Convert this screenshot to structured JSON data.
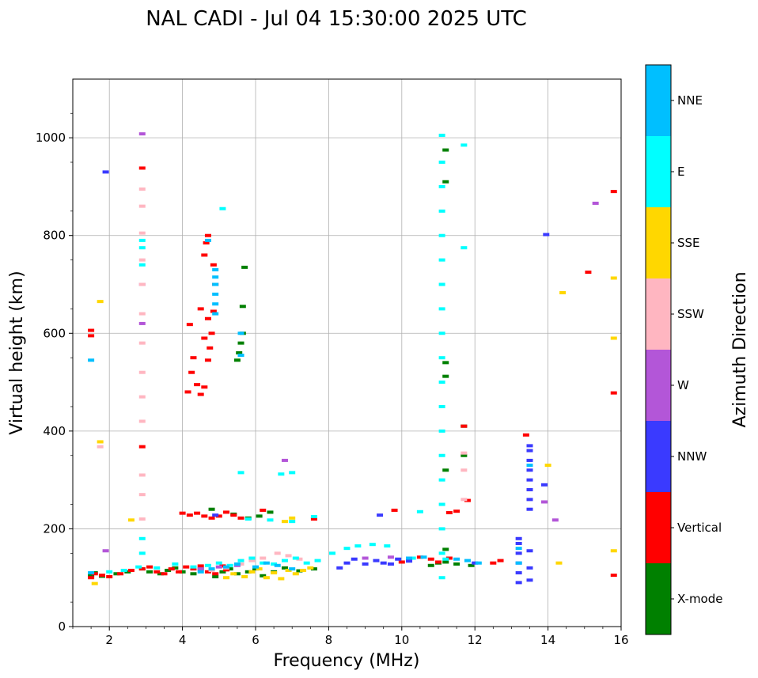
{
  "chart_data": {
    "type": "scatter",
    "title": "NAL CADI - Jul 04 15:30:00 2025 UTC",
    "xlabel": "Frequency (MHz)",
    "ylabel": "Virtual height (km)",
    "xlim": [
      1,
      16
    ],
    "ylim": [
      0,
      1120
    ],
    "xticks": [
      2,
      4,
      6,
      8,
      10,
      12,
      14,
      16
    ],
    "yticks": [
      0,
      200,
      400,
      600,
      800,
      1000
    ],
    "grid": true,
    "colorbar": {
      "label": "Azimuth Direction",
      "categories": [
        "X-mode",
        "Vertical",
        "NNW",
        "W",
        "SSW",
        "SSE",
        "E",
        "NNE"
      ],
      "colors": [
        "#008000",
        "#ff0000",
        "#3a3aff",
        "#b356d8",
        "#ffb6c1",
        "#ffd700",
        "#00ffff",
        "#00bfff"
      ]
    },
    "series": [
      {
        "name": "X-mode",
        "points": [
          [
            1.5,
            105
          ],
          [
            1.6,
            110
          ],
          [
            1.8,
            103
          ],
          [
            2.2,
            108
          ],
          [
            2.5,
            112
          ],
          [
            2.9,
            118
          ],
          [
            3.1,
            112
          ],
          [
            3.4,
            108
          ],
          [
            3.6,
            115
          ],
          [
            3.8,
            120
          ],
          [
            4.0,
            112
          ],
          [
            4.3,
            108
          ],
          [
            4.5,
            118
          ],
          [
            4.9,
            102
          ],
          [
            5.1,
            112
          ],
          [
            5.3,
            118
          ],
          [
            5.5,
            108
          ],
          [
            5.8,
            112
          ],
          [
            6.0,
            118
          ],
          [
            6.2,
            104
          ],
          [
            6.5,
            112
          ],
          [
            6.8,
            120
          ],
          [
            7.2,
            114
          ],
          [
            7.6,
            118
          ],
          [
            10.8,
            125
          ],
          [
            11.0,
            130
          ],
          [
            11.2,
            132
          ],
          [
            11.5,
            128
          ],
          [
            11.9,
            125
          ],
          [
            5.4,
            230
          ],
          [
            5.8,
            222
          ],
          [
            6.1,
            226
          ],
          [
            6.4,
            234
          ],
          [
            4.8,
            240
          ],
          [
            5.5,
            545
          ],
          [
            5.55,
            560
          ],
          [
            5.6,
            580
          ],
          [
            5.65,
            600
          ],
          [
            5.65,
            655
          ],
          [
            5.7,
            735
          ],
          [
            11.2,
            158
          ],
          [
            11.2,
            320
          ],
          [
            11.2,
            512
          ],
          [
            11.2,
            540
          ],
          [
            11.2,
            910
          ],
          [
            11.2,
            975
          ],
          [
            11.7,
            350
          ],
          [
            11.7,
            410
          ]
        ]
      },
      {
        "name": "Vertical",
        "points": [
          [
            1.5,
            100
          ],
          [
            1.6,
            108
          ],
          [
            1.8,
            105
          ],
          [
            2.0,
            102
          ],
          [
            2.3,
            108
          ],
          [
            2.6,
            115
          ],
          [
            2.9,
            118
          ],
          [
            3.1,
            122
          ],
          [
            3.3,
            112
          ],
          [
            3.5,
            108
          ],
          [
            3.7,
            118
          ],
          [
            3.9,
            112
          ],
          [
            4.1,
            122
          ],
          [
            4.3,
            118
          ],
          [
            4.5,
            124
          ],
          [
            4.7,
            112
          ],
          [
            4.9,
            108
          ],
          [
            5.1,
            124
          ],
          [
            5.2,
            116
          ],
          [
            10.0,
            132
          ],
          [
            10.5,
            142
          ],
          [
            10.8,
            138
          ],
          [
            11.0,
            132
          ],
          [
            11.3,
            140
          ],
          [
            12.5,
            130
          ],
          [
            12.7,
            135
          ],
          [
            4.0,
            232
          ],
          [
            4.2,
            228
          ],
          [
            4.4,
            232
          ],
          [
            4.6,
            226
          ],
          [
            4.8,
            222
          ],
          [
            5.0,
            226
          ],
          [
            5.2,
            234
          ],
          [
            5.4,
            228
          ],
          [
            5.6,
            222
          ],
          [
            6.2,
            238
          ],
          [
            7.6,
            220
          ],
          [
            9.8,
            238
          ],
          [
            11.3,
            233
          ],
          [
            11.5,
            236
          ],
          [
            11.8,
            258
          ],
          [
            4.15,
            480
          ],
          [
            4.25,
            520
          ],
          [
            4.3,
            550
          ],
          [
            4.4,
            495
          ],
          [
            4.5,
            475
          ],
          [
            4.6,
            490
          ],
          [
            4.7,
            545
          ],
          [
            4.75,
            570
          ],
          [
            4.8,
            600
          ],
          [
            4.85,
            645
          ],
          [
            4.9,
            700
          ],
          [
            4.6,
            760
          ],
          [
            4.65,
            785
          ],
          [
            4.7,
            800
          ],
          [
            4.5,
            650
          ],
          [
            4.6,
            590
          ],
          [
            4.2,
            618
          ],
          [
            4.7,
            630
          ],
          [
            4.85,
            740
          ],
          [
            1.5,
            595
          ],
          [
            1.5,
            606
          ],
          [
            2.9,
            368
          ],
          [
            2.9,
            938
          ],
          [
            11.7,
            410
          ],
          [
            15.8,
            105
          ],
          [
            15.8,
            478
          ],
          [
            15.8,
            890
          ],
          [
            15.1,
            725
          ],
          [
            13.4,
            392
          ]
        ]
      },
      {
        "name": "NNW",
        "points": [
          [
            8.3,
            120
          ],
          [
            8.5,
            130
          ],
          [
            8.7,
            138
          ],
          [
            9.0,
            128
          ],
          [
            9.3,
            135
          ],
          [
            9.5,
            130
          ],
          [
            9.7,
            128
          ],
          [
            9.9,
            138
          ],
          [
            10.2,
            134
          ],
          [
            12.0,
            130
          ],
          [
            13.2,
            90
          ],
          [
            13.2,
            110
          ],
          [
            13.2,
            130
          ],
          [
            13.2,
            150
          ],
          [
            13.2,
            170
          ],
          [
            13.2,
            180
          ],
          [
            13.5,
            95
          ],
          [
            13.5,
            120
          ],
          [
            13.5,
            155
          ],
          [
            13.5,
            240
          ],
          [
            13.5,
            260
          ],
          [
            13.5,
            280
          ],
          [
            13.5,
            300
          ],
          [
            13.5,
            320
          ],
          [
            13.5,
            340
          ],
          [
            13.5,
            360
          ],
          [
            13.5,
            370
          ],
          [
            9.4,
            228
          ],
          [
            13.9,
            290
          ],
          [
            13.95,
            802
          ],
          [
            1.9,
            930
          ],
          [
            4.9,
            228
          ]
        ]
      },
      {
        "name": "W",
        "points": [
          [
            1.9,
            155
          ],
          [
            2.9,
            620
          ],
          [
            2.9,
            700
          ],
          [
            2.9,
            1008
          ],
          [
            4.5,
            118
          ],
          [
            5.0,
            122
          ],
          [
            5.5,
            125
          ],
          [
            6.8,
            340
          ],
          [
            9.0,
            140
          ],
          [
            9.7,
            142
          ],
          [
            13.9,
            255
          ],
          [
            14.2,
            218
          ],
          [
            15.3,
            866
          ]
        ]
      },
      {
        "name": "SSW",
        "points": [
          [
            2.9,
            420
          ],
          [
            2.9,
            470
          ],
          [
            2.9,
            520
          ],
          [
            2.9,
            580
          ],
          [
            2.9,
            640
          ],
          [
            2.9,
            700
          ],
          [
            2.9,
            750
          ],
          [
            2.9,
            805
          ],
          [
            2.9,
            860
          ],
          [
            2.9,
            895
          ],
          [
            2.9,
            270
          ],
          [
            2.9,
            310
          ],
          [
            2.9,
            220
          ],
          [
            4.8,
            115
          ],
          [
            5.2,
            120
          ],
          [
            5.6,
            128
          ],
          [
            5.9,
            135
          ],
          [
            6.2,
            140
          ],
          [
            6.6,
            150
          ],
          [
            6.9,
            145
          ],
          [
            7.2,
            138
          ],
          [
            11.7,
            260
          ],
          [
            11.7,
            320
          ],
          [
            11.7,
            355
          ],
          [
            1.75,
            368
          ]
        ]
      },
      {
        "name": "SSE",
        "points": [
          [
            1.6,
            88
          ],
          [
            5.2,
            100
          ],
          [
            5.4,
            108
          ],
          [
            5.7,
            102
          ],
          [
            5.9,
            112
          ],
          [
            6.1,
            118
          ],
          [
            6.3,
            100
          ],
          [
            6.5,
            110
          ],
          [
            6.7,
            98
          ],
          [
            6.9,
            115
          ],
          [
            7.1,
            108
          ],
          [
            7.3,
            115
          ],
          [
            7.5,
            120
          ],
          [
            6.8,
            215
          ],
          [
            7.0,
            222
          ],
          [
            2.6,
            218
          ],
          [
            1.75,
            378
          ],
          [
            1.75,
            665
          ],
          [
            14.0,
            330
          ],
          [
            14.4,
            683
          ],
          [
            14.3,
            130
          ],
          [
            15.8,
            155
          ],
          [
            15.8,
            590
          ],
          [
            15.8,
            713
          ]
        ]
      },
      {
        "name": "E",
        "points": [
          [
            2.0,
            112
          ],
          [
            2.4,
            115
          ],
          [
            2.8,
            122
          ],
          [
            3.3,
            120
          ],
          [
            3.8,
            128
          ],
          [
            4.3,
            122
          ],
          [
            4.7,
            125
          ],
          [
            5.0,
            130
          ],
          [
            5.3,
            125
          ],
          [
            5.6,
            135
          ],
          [
            5.9,
            140
          ],
          [
            6.2,
            130
          ],
          [
            6.5,
            128
          ],
          [
            6.8,
            135
          ],
          [
            7.1,
            140
          ],
          [
            7.4,
            130
          ],
          [
            7.7,
            135
          ],
          [
            8.1,
            150
          ],
          [
            8.5,
            160
          ],
          [
            8.8,
            165
          ],
          [
            9.2,
            168
          ],
          [
            9.6,
            165
          ],
          [
            10.3,
            140
          ],
          [
            11.2,
            138
          ],
          [
            5.8,
            220
          ],
          [
            6.4,
            218
          ],
          [
            7.0,
            215
          ],
          [
            7.6,
            225
          ],
          [
            10.5,
            235
          ],
          [
            5.1,
            855
          ],
          [
            11.1,
            100
          ],
          [
            11.1,
            150
          ],
          [
            11.1,
            200
          ],
          [
            11.1,
            250
          ],
          [
            11.1,
            300
          ],
          [
            11.1,
            350
          ],
          [
            11.1,
            400
          ],
          [
            11.1,
            450
          ],
          [
            11.1,
            500
          ],
          [
            11.1,
            550
          ],
          [
            11.1,
            600
          ],
          [
            11.1,
            650
          ],
          [
            11.1,
            700
          ],
          [
            11.1,
            750
          ],
          [
            11.1,
            800
          ],
          [
            11.1,
            850
          ],
          [
            11.1,
            900
          ],
          [
            11.1,
            950
          ],
          [
            11.1,
            1005
          ],
          [
            11.7,
            775
          ],
          [
            11.7,
            985
          ],
          [
            2.9,
            775
          ],
          [
            2.9,
            740
          ],
          [
            2.9,
            790
          ],
          [
            2.9,
            150
          ],
          [
            2.9,
            180
          ],
          [
            5.6,
            315
          ],
          [
            6.7,
            312
          ],
          [
            7.0,
            315
          ]
        ]
      },
      {
        "name": "NNE",
        "points": [
          [
            1.5,
            110
          ],
          [
            1.5,
            545
          ],
          [
            4.5,
            112
          ],
          [
            4.8,
            118
          ],
          [
            5.2,
            122
          ],
          [
            5.5,
            128
          ],
          [
            6.0,
            122
          ],
          [
            6.3,
            130
          ],
          [
            6.6,
            125
          ],
          [
            7.0,
            118
          ],
          [
            10.2,
            140
          ],
          [
            10.6,
            142
          ],
          [
            11.5,
            138
          ],
          [
            11.8,
            135
          ],
          [
            12.1,
            130
          ],
          [
            4.9,
            640
          ],
          [
            4.9,
            660
          ],
          [
            4.9,
            680
          ],
          [
            4.9,
            700
          ],
          [
            4.9,
            715
          ],
          [
            4.9,
            730
          ],
          [
            4.7,
            790
          ],
          [
            5.6,
            555
          ],
          [
            5.6,
            600
          ],
          [
            13.2,
            130
          ],
          [
            13.2,
            160
          ],
          [
            13.5,
            330
          ]
        ]
      }
    ]
  }
}
